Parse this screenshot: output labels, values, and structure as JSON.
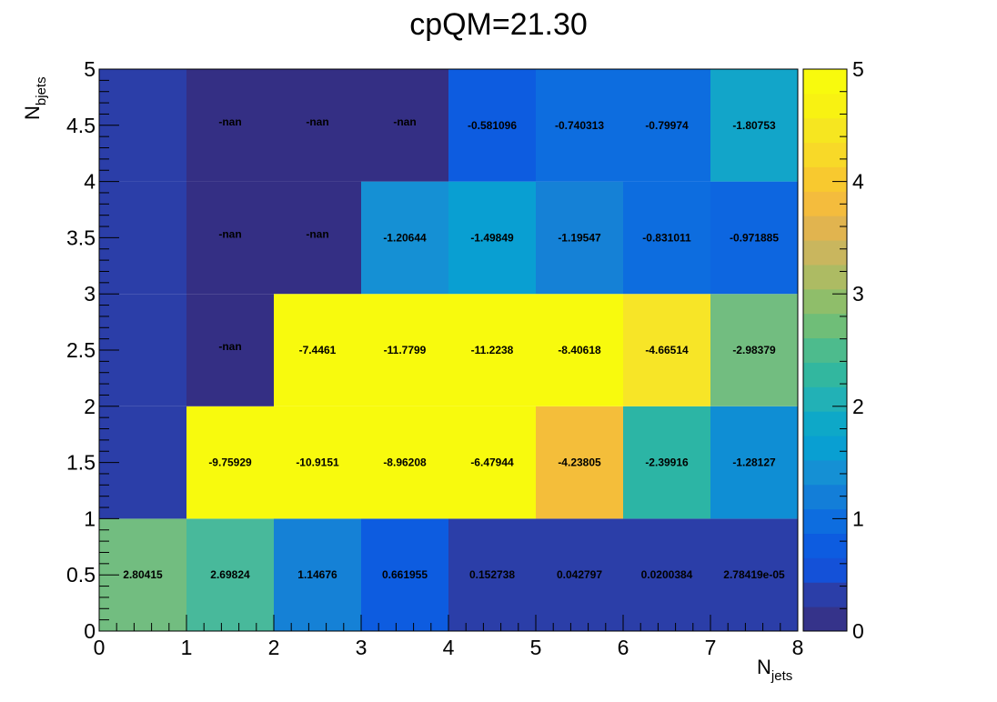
{
  "chart_data": {
    "type": "heatmap",
    "title": "cpQM=21.30",
    "xlabel": {
      "main": "N",
      "sub": "jets"
    },
    "ylabel": {
      "main": "N",
      "sub": "bjets"
    },
    "xlim": [
      0,
      8
    ],
    "ylim": [
      0,
      5
    ],
    "x_ticks": [
      "0",
      "1",
      "2",
      "3",
      "4",
      "5",
      "6",
      "7",
      "8"
    ],
    "y_ticks": [
      "0",
      "0.5",
      "1",
      "1.5",
      "2",
      "2.5",
      "3",
      "3.5",
      "4",
      "4.5",
      "5"
    ],
    "color_scale": {
      "min": 0,
      "max": 5,
      "ticks": [
        "0",
        "1",
        "2",
        "3",
        "4",
        "5"
      ],
      "palette": "parula"
    },
    "grid": false,
    "rows": [
      {
        "y_range": [
          0,
          1
        ],
        "values": [
          2.80415,
          2.69824,
          1.14676,
          0.661955,
          0.152738,
          0.042797,
          0.0200384,
          2.78419e-05
        ],
        "labels": [
          "2.80415",
          "2.69824",
          "1.14676",
          "0.661955",
          "0.152738",
          "0.042797",
          "0.0200384",
          "2.78419e-05"
        ]
      },
      {
        "y_range": [
          1,
          2
        ],
        "values": [
          null,
          -9.75929,
          -10.9151,
          -8.96208,
          -6.47944,
          -4.23805,
          -2.39916,
          -1.28127
        ],
        "labels": [
          "",
          "-9.75929",
          "-10.9151",
          "-8.96208",
          "-6.47944",
          "-4.23805",
          "-2.39916",
          "-1.28127"
        ]
      },
      {
        "y_range": [
          2,
          3
        ],
        "values": [
          null,
          "nan",
          -7.4461,
          -11.7799,
          -11.2238,
          -8.40618,
          -4.66514,
          -2.98379
        ],
        "labels": [
          "",
          "-nan",
          "-7.4461",
          "-11.7799",
          "-11.2238",
          "-8.40618",
          "-4.66514",
          "-2.98379"
        ]
      },
      {
        "y_range": [
          3,
          4
        ],
        "values": [
          null,
          "nan",
          "nan",
          -1.20644,
          -1.49849,
          -1.19547,
          -0.831011,
          -0.971885
        ],
        "labels": [
          "",
          "-nan",
          "-nan",
          "-1.20644",
          "-1.49849",
          "-1.19547",
          "-0.831011",
          "-0.971885"
        ]
      },
      {
        "y_range": [
          4,
          5
        ],
        "values": [
          null,
          "nan",
          "nan",
          "nan",
          -0.581096,
          -0.740313,
          -0.79974,
          -1.80753
        ],
        "labels": [
          "",
          "-nan",
          "-nan",
          "-nan",
          "-0.581096",
          "-0.740313",
          "-0.79974",
          "-1.80753"
        ]
      }
    ],
    "cell_colors": [
      [
        "#72bd80",
        "#48b99b",
        "#1581d6",
        "#0d5ce0",
        "#2b3ea8",
        "#2b3ea8",
        "#2b3ea8",
        "#2b3ea8"
      ],
      [
        "#2b3ea8",
        "#f8fa0d",
        "#f8fa0d",
        "#f8fa0d",
        "#f8fa0d",
        "#f4be3a",
        "#2cb5a5",
        "#0f8ed4"
      ],
      [
        "#2b3ea8",
        "#342f84",
        "#f8fa0d",
        "#f8fa0d",
        "#f8fa0d",
        "#f8fa0d",
        "#f7e527",
        "#72bd80"
      ],
      [
        "#2b3ea8",
        "#342f84",
        "#342f84",
        "#1590d4",
        "#099fd2",
        "#1581d6",
        "#0d6ddf",
        "#0d66e0"
      ],
      [
        "#2b3ea8",
        "#342f84",
        "#342f84",
        "#342f84",
        "#0d5ce0",
        "#0d6ddf",
        "#0d6ddf",
        "#12a5c9"
      ]
    ],
    "palette_colors": [
      "#35338a",
      "#2b3ea8",
      "#1451d8",
      "#0d5ce0",
      "#0d6ddf",
      "#137ed8",
      "#1590d4",
      "#099fd2",
      "#0ea8c8",
      "#22b1b6",
      "#32b79f",
      "#4dbb8d",
      "#6fbe78",
      "#8fbe6a",
      "#adbb63",
      "#c9b65e",
      "#e1b44f",
      "#f4bc3d",
      "#f8c92f",
      "#f8d928",
      "#f6e620",
      "#f8f212",
      "#f8fa0d"
    ]
  }
}
